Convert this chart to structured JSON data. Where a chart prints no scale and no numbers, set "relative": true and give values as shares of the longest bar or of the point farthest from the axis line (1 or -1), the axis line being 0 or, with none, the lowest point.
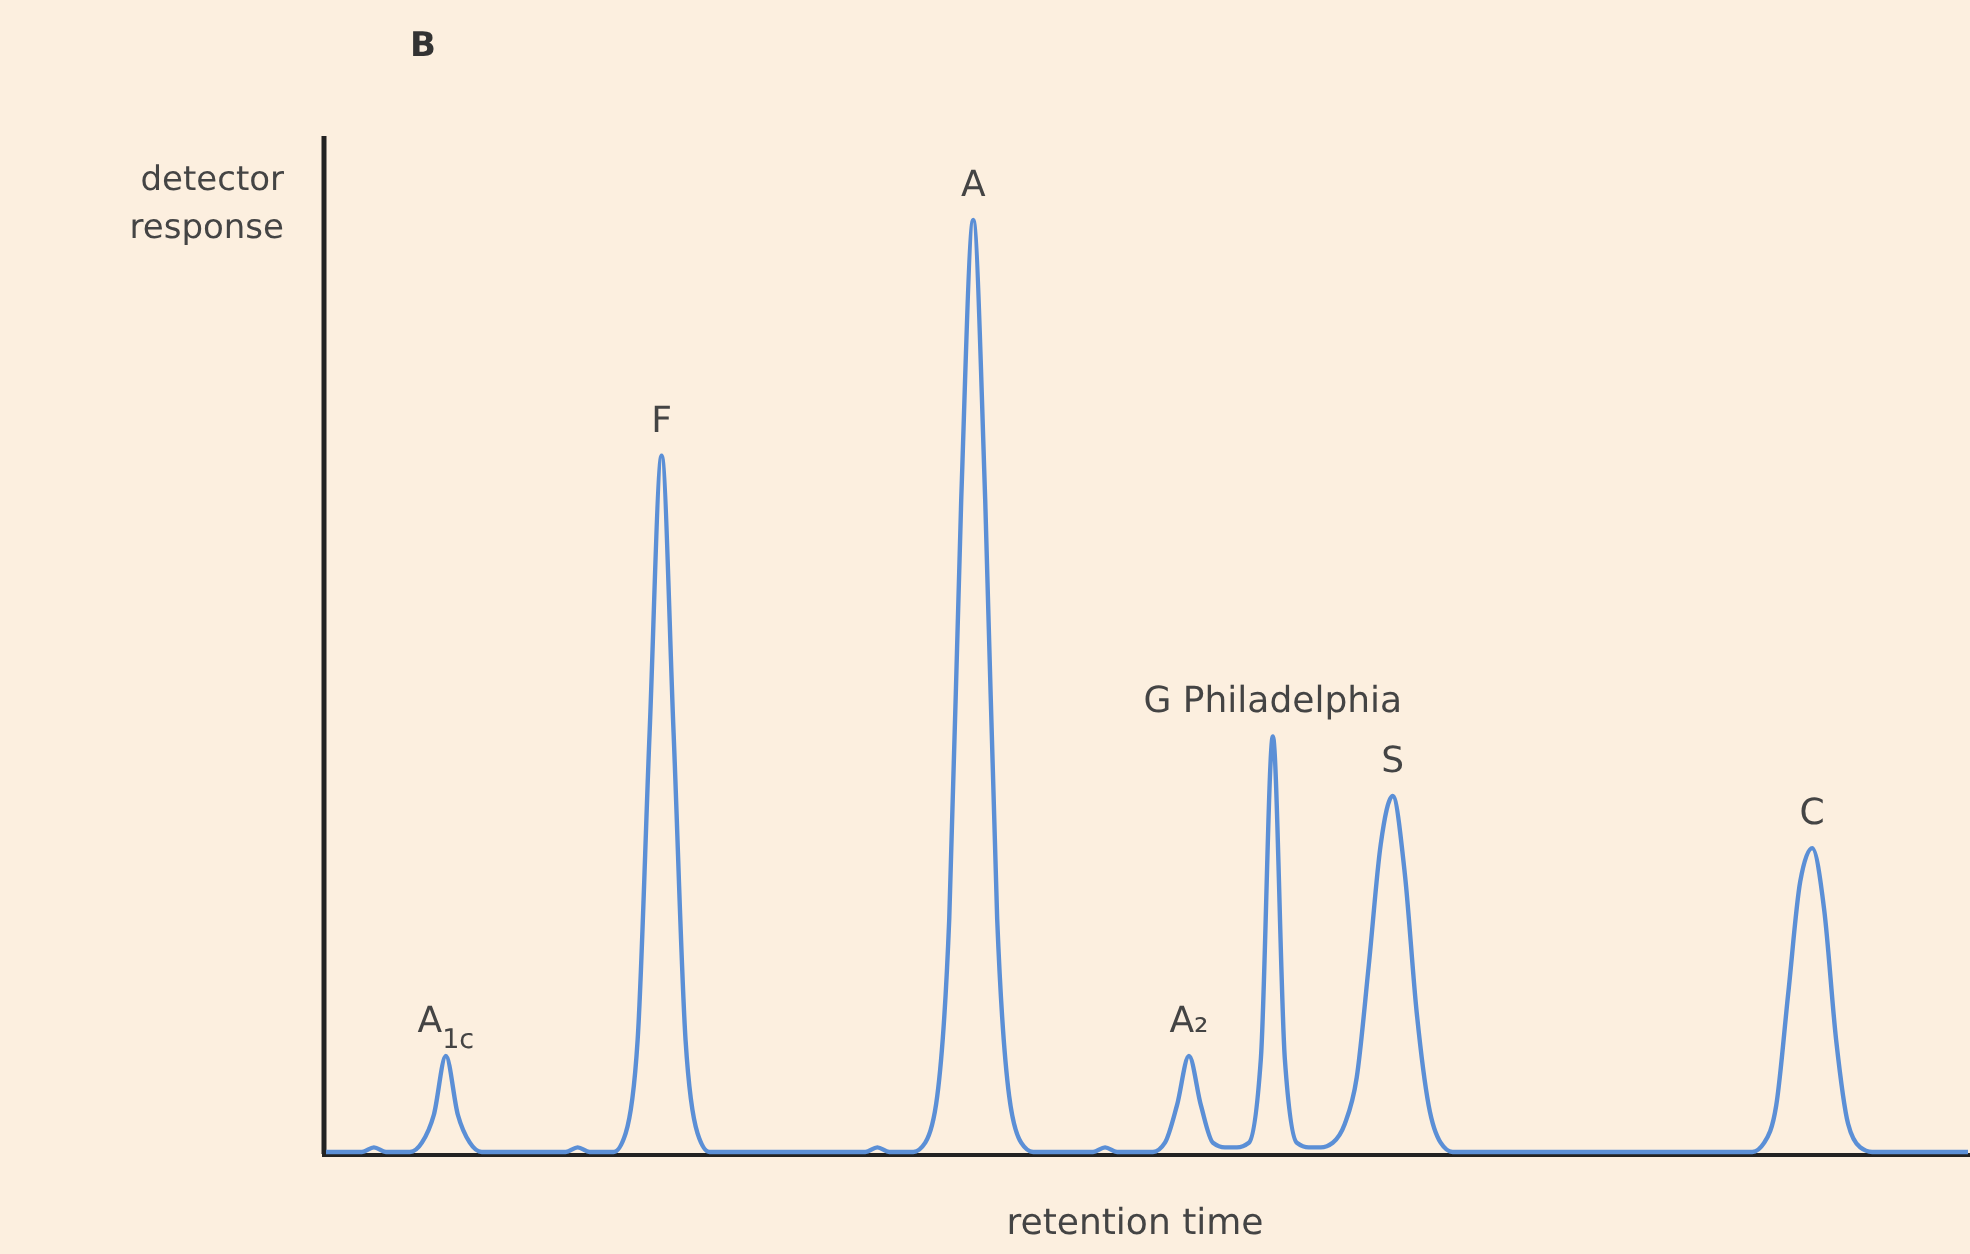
{
  "chart_data": {
    "type": "line",
    "relative": true,
    "title": "B",
    "xlabel": "retention time",
    "ylabel": "detector response",
    "line_style": "solid",
    "categories": [
      null,
      null,
      null,
      null,
      null,
      null,
      null,
      null,
      null,
      null,
      null,
      null,
      null,
      null,
      null,
      null,
      null,
      null,
      null,
      null,
      null,
      null,
      null,
      null,
      null,
      null,
      null,
      null,
      null,
      null,
      null,
      null,
      null,
      null,
      null,
      null,
      null,
      null,
      null,
      null,
      null,
      null,
      null,
      null,
      null,
      null,
      null,
      null,
      null,
      null,
      null,
      null,
      null,
      null,
      null,
      null,
      null,
      null,
      null,
      null,
      null,
      null,
      null,
      null,
      null,
      null,
      null,
      null,
      null,
      null,
      null,
      null,
      null,
      null,
      null,
      null,
      null,
      null,
      null,
      null,
      null,
      null,
      null,
      null,
      null,
      null,
      null,
      null,
      null,
      null,
      null,
      null,
      null,
      null,
      null,
      null,
      null,
      null,
      null,
      null,
      null,
      null,
      null,
      null,
      null,
      null,
      null,
      null,
      null,
      null,
      null,
      null,
      null,
      null,
      null,
      null,
      null,
      null,
      null,
      null,
      null,
      null,
      null,
      null,
      null,
      null,
      null,
      null,
      null,
      null,
      null,
      null,
      null,
      null,
      null,
      null,
      null,
      null
    ],
    "series": [
      {
        "color": "#5b8fd6",
        "values": [
          0,
          0,
          0,
          0,
          0.005,
          0,
          0,
          0,
          0.01,
          0.04,
          0.103,
          0.04,
          0.01,
          0,
          0,
          0,
          0,
          0,
          0,
          0,
          0,
          0.005,
          0,
          0,
          0,
          0.02,
          0.12,
          0.45,
          0.747,
          0.45,
          0.12,
          0.02,
          0,
          0,
          0,
          0,
          0,
          0,
          0,
          0,
          0,
          0,
          0,
          0,
          0,
          0,
          0.005,
          0,
          0,
          0,
          0.01,
          0.06,
          0.25,
          0.7,
          1,
          0.7,
          0.25,
          0.06,
          0.01,
          0,
          0,
          0,
          0,
          0,
          0,
          0.005,
          0,
          0,
          0,
          0,
          0.01,
          0.05,
          0.103,
          0.05,
          0.01,
          0.005,
          0.005,
          0.01,
          0.1,
          0.446,
          0.1,
          0.01,
          0.005,
          0.005,
          0.01,
          0.03,
          0.08,
          0.2,
          0.33,
          0.382,
          0.3,
          0.15,
          0.05,
          0.01,
          0,
          0,
          0,
          0,
          0,
          0,
          0,
          0,
          0,
          0,
          0,
          0,
          0,
          0,
          0,
          0,
          0,
          0,
          0,
          0,
          0,
          0,
          0,
          0,
          0,
          0,
          0.01,
          0.05,
          0.17,
          0.29,
          0.326,
          0.26,
          0.12,
          0.03,
          0.005,
          0,
          0,
          0,
          0,
          0,
          0,
          0,
          0,
          0
        ]
      }
    ],
    "annotations": [
      {
        "text": "A$_{1c}$",
        "y": 0.103
      },
      {
        "text": "F",
        "y": 0.747
      },
      {
        "text": "A",
        "y": 1
      },
      {
        "text": "A₂",
        "y": 0.103
      },
      {
        "text": "G Philadelphia",
        "y": 0.446
      },
      {
        "text": "S",
        "y": 0.382
      },
      {
        "text": "C",
        "y": 0.326
      }
    ]
  }
}
